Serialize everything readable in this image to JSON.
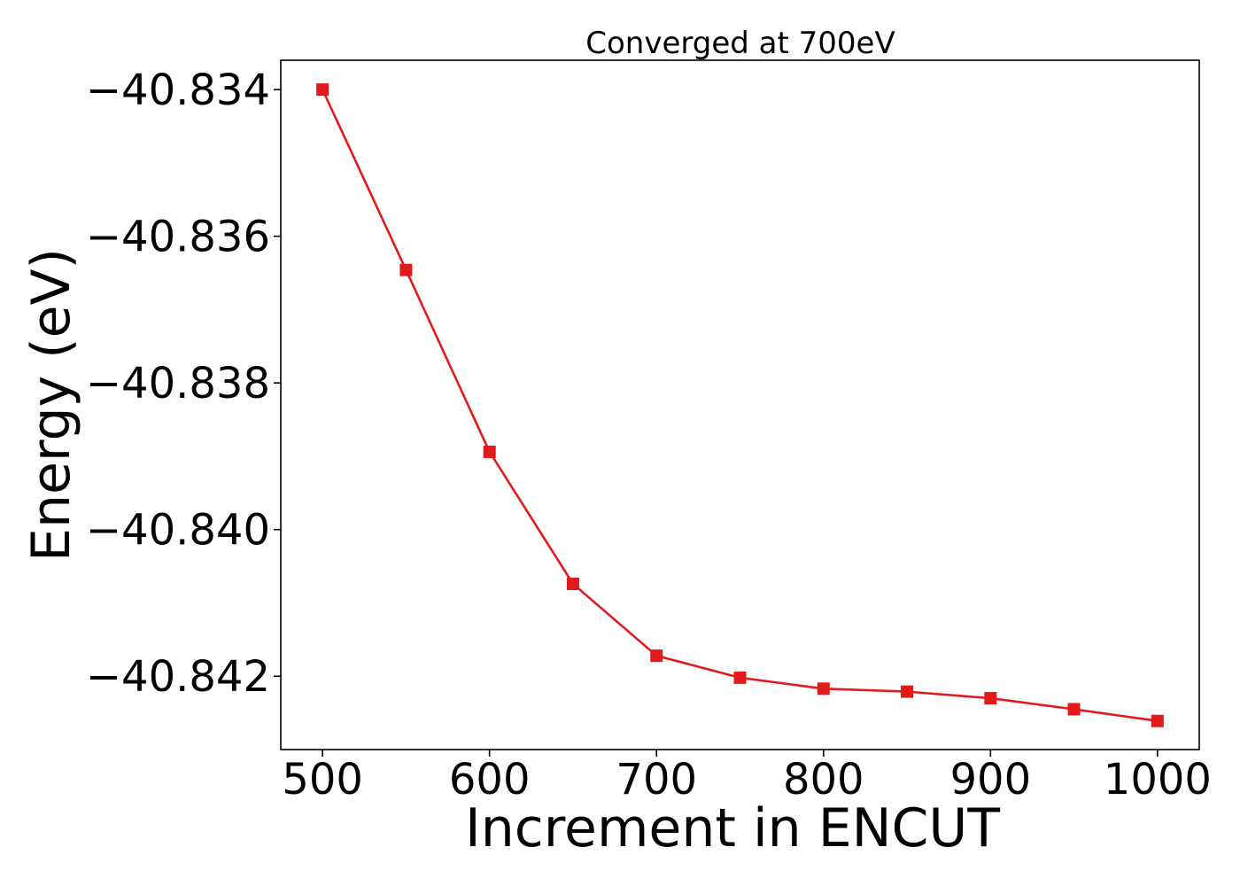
{
  "chart_data": {
    "type": "line",
    "title": "Converged at 700eV",
    "xlabel": "Increment in ENCUT",
    "ylabel": "Energy (eV)",
    "xlim": [
      475,
      1025
    ],
    "ylim": [
      -40.843,
      -40.8336
    ],
    "x_ticks": [
      500,
      600,
      700,
      800,
      900,
      1000
    ],
    "x_tick_labels": [
      "500",
      "600",
      "700",
      "800",
      "900",
      "1000"
    ],
    "y_ticks": [
      -40.834,
      -40.836,
      -40.838,
      -40.84,
      -40.842
    ],
    "y_tick_labels": [
      "−40.834",
      "−40.836",
      "−40.838",
      "−40.840",
      "−40.842"
    ],
    "grid": false,
    "series": [
      {
        "color": "#e31a1c",
        "marker": "square",
        "x": [
          500,
          550,
          600,
          650,
          700,
          750,
          800,
          850,
          900,
          950,
          1000
        ],
        "y": [
          -40.834,
          -40.83646,
          -40.83894,
          -40.84074,
          -40.84172,
          -40.84202,
          -40.84217,
          -40.84221,
          -40.8423,
          -40.84245,
          -40.84261
        ]
      }
    ]
  }
}
